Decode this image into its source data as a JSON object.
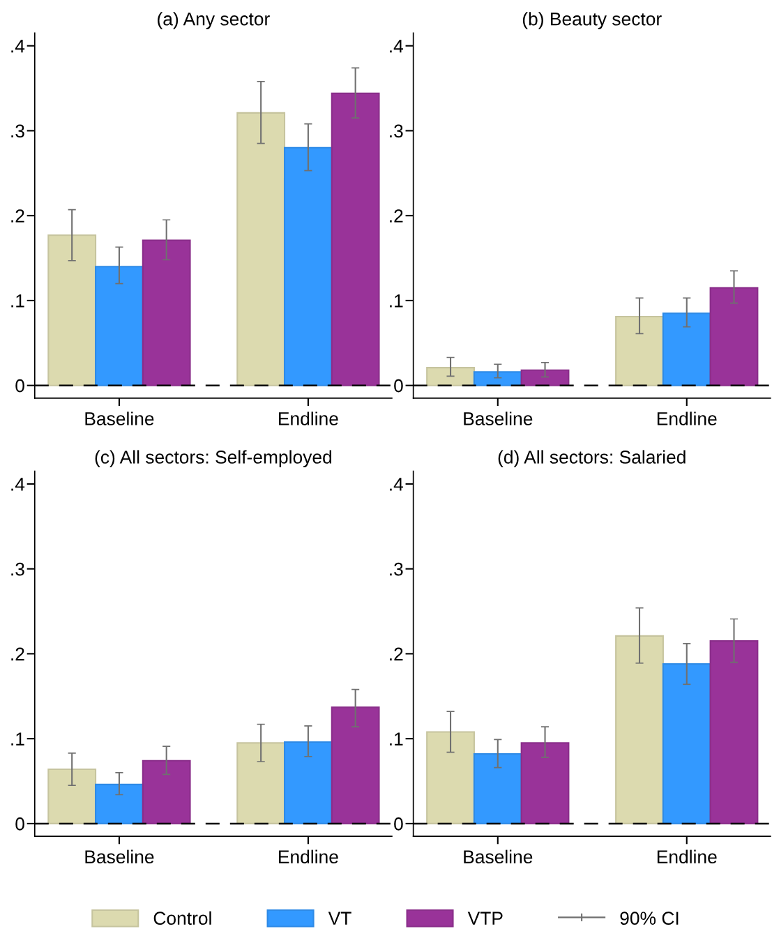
{
  "chart_data": [
    {
      "type": "bar",
      "title": "(a) Any sector",
      "categories": [
        "Baseline",
        "Endline"
      ],
      "ylim": [
        -0.015,
        0.415
      ],
      "yticks": [
        0,
        {
          "value": 0.1,
          "label": ".1"
        },
        {
          "value": 0.2,
          "label": ".2"
        },
        {
          "value": 0.3,
          "label": ".3"
        },
        {
          "value": 0.4,
          "label": ".4"
        }
      ],
      "grid": false,
      "legend": "bottom",
      "annotations": [
        "90% CI"
      ],
      "ref_lines": [
        {
          "axis": "y",
          "value": 0,
          "color": "#000000",
          "line_style": "dashed"
        }
      ],
      "series": [
        {
          "name": "Control",
          "color": "#dcdaaf",
          "values": [
            0.177,
            0.321
          ],
          "errors": [
            [
              0.147,
              0.207
            ],
            [
              0.285,
              0.358
            ]
          ]
        },
        {
          "name": "VT",
          "color": "#3399ff",
          "values": [
            0.14,
            0.28
          ],
          "errors": [
            [
              0.12,
              0.163
            ],
            [
              0.253,
              0.308
            ]
          ]
        },
        {
          "name": "VTP",
          "color": "#993399",
          "values": [
            0.171,
            0.344
          ],
          "errors": [
            [
              0.148,
              0.195
            ],
            [
              0.315,
              0.374
            ]
          ]
        }
      ]
    },
    {
      "type": "bar",
      "title": "(b) Beauty sector",
      "categories": [
        "Baseline",
        "Endline"
      ],
      "ylim": [
        -0.015,
        0.415
      ],
      "yticks": [
        0,
        {
          "value": 0.1,
          "label": ".1"
        },
        {
          "value": 0.2,
          "label": ".2"
        },
        {
          "value": 0.3,
          "label": ".3"
        },
        {
          "value": 0.4,
          "label": ".4"
        }
      ],
      "grid": false,
      "ref_lines": [
        {
          "axis": "y",
          "value": 0,
          "color": "#000000",
          "line_style": "dashed"
        }
      ],
      "series": [
        {
          "color": "#dcdaaf",
          "values": [
            0.021,
            0.081
          ],
          "errors": [
            [
              0.011,
              0.033
            ],
            [
              0.061,
              0.103
            ]
          ]
        },
        {
          "color": "#3399ff",
          "values": [
            0.016,
            0.085
          ],
          "errors": [
            [
              0.009,
              0.025
            ],
            [
              0.069,
              0.103
            ]
          ]
        },
        {
          "color": "#993399",
          "values": [
            0.018,
            0.115
          ],
          "errors": [
            [
              0.01,
              0.027
            ],
            [
              0.097,
              0.135
            ]
          ]
        }
      ]
    },
    {
      "type": "bar",
      "title": "(c) All sectors: Self-employed",
      "categories": [
        "Baseline",
        "Endline"
      ],
      "ylim": [
        -0.015,
        0.415
      ],
      "yticks": [
        0,
        {
          "value": 0.1,
          "label": ".1"
        },
        {
          "value": 0.2,
          "label": ".2"
        },
        {
          "value": 0.3,
          "label": ".3"
        },
        {
          "value": 0.4,
          "label": ".4"
        }
      ],
      "grid": false,
      "ref_lines": [
        {
          "axis": "y",
          "value": 0,
          "color": "#000000",
          "line_style": "dashed"
        }
      ],
      "series": [
        {
          "color": "#dcdaaf",
          "values": [
            0.064,
            0.095
          ],
          "errors": [
            [
              0.045,
              0.083
            ],
            [
              0.073,
              0.117
            ]
          ]
        },
        {
          "color": "#3399ff",
          "values": [
            0.046,
            0.096
          ],
          "errors": [
            [
              0.034,
              0.06
            ],
            [
              0.079,
              0.115
            ]
          ]
        },
        {
          "color": "#993399",
          "values": [
            0.074,
            0.137
          ],
          "errors": [
            [
              0.058,
              0.091
            ],
            [
              0.114,
              0.158
            ]
          ]
        }
      ]
    },
    {
      "type": "bar",
      "title": "(d) All sectors: Salaried",
      "categories": [
        "Baseline",
        "Endline"
      ],
      "ylim": [
        -0.015,
        0.415
      ],
      "yticks": [
        0,
        {
          "value": 0.1,
          "label": ".1"
        },
        {
          "value": 0.2,
          "label": ".2"
        },
        {
          "value": 0.3,
          "label": ".3"
        },
        {
          "value": 0.4,
          "label": ".4"
        }
      ],
      "grid": false,
      "ref_lines": [
        {
          "axis": "y",
          "value": 0,
          "color": "#000000",
          "line_style": "dashed"
        }
      ],
      "series": [
        {
          "color": "#dcdaaf",
          "values": [
            0.108,
            0.221
          ],
          "errors": [
            [
              0.084,
              0.132
            ],
            [
              0.189,
              0.254
            ]
          ]
        },
        {
          "color": "#3399ff",
          "values": [
            0.082,
            0.188
          ],
          "errors": [
            [
              0.066,
              0.099
            ],
            [
              0.164,
              0.212
            ]
          ]
        },
        {
          "color": "#993399",
          "values": [
            0.095,
            0.215
          ],
          "errors": [
            [
              0.078,
              0.114
            ],
            [
              0.19,
              0.241
            ]
          ]
        }
      ]
    }
  ]
}
